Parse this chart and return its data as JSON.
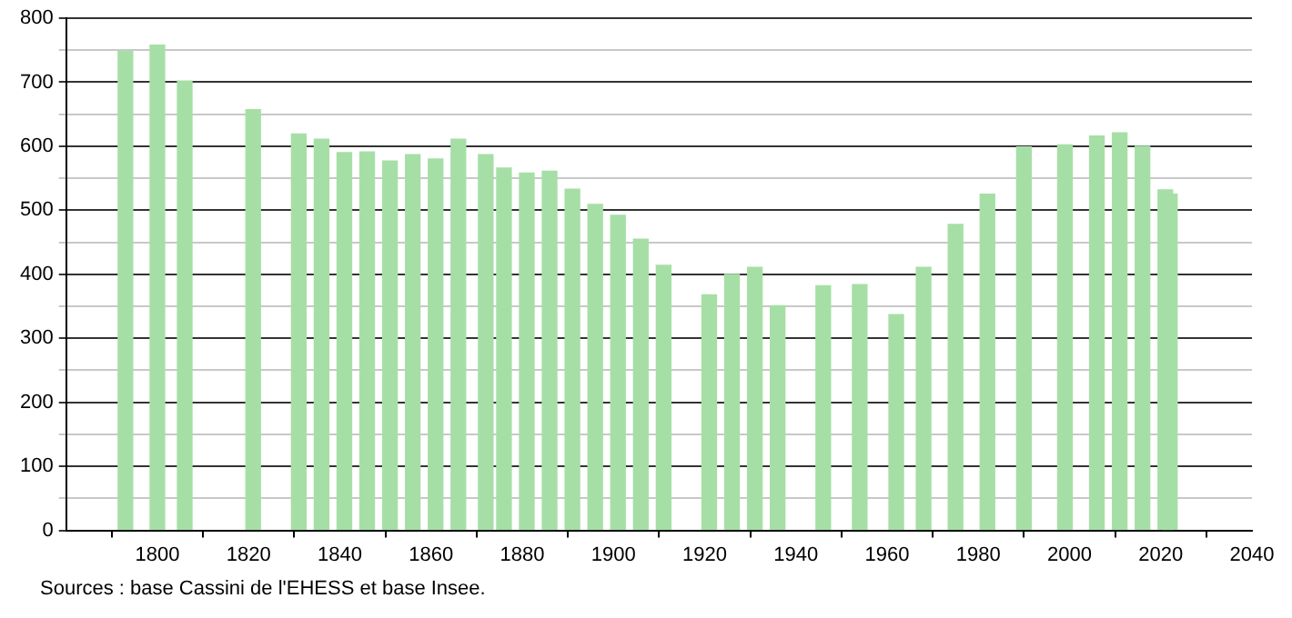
{
  "chart_data": {
    "type": "bar",
    "x": [
      1793,
      1800,
      1806,
      1821,
      1831,
      1836,
      1841,
      1846,
      1851,
      1856,
      1861,
      1866,
      1872,
      1876,
      1881,
      1886,
      1891,
      1896,
      1901,
      1906,
      1911,
      1921,
      1926,
      1931,
      1936,
      1946,
      1954,
      1962,
      1968,
      1975,
      1982,
      1990,
      1999,
      2006,
      2011,
      2016,
      2021,
      2022
    ],
    "values": [
      748,
      758,
      702,
      657,
      619,
      611,
      590,
      591,
      577,
      587,
      580,
      611,
      587,
      566,
      558,
      561,
      533,
      509,
      492,
      455,
      414,
      368,
      400,
      411,
      351,
      382,
      384,
      337,
      411,
      478,
      525,
      599,
      602,
      616,
      621,
      600,
      532,
      525
    ],
    "color": "#a6dfa6",
    "xlim": [
      1780,
      2040
    ],
    "xticks": [
      1800,
      1820,
      1840,
      1860,
      1880,
      1900,
      1920,
      1940,
      1960,
      1980,
      2000,
      2020,
      2040
    ],
    "ylim": [
      0,
      800
    ],
    "yticks": [
      0,
      {
        "value": 50,
        "label": null
      },
      100,
      {
        "value": 150,
        "label": null
      },
      200,
      {
        "value": 250,
        "label": null
      },
      300,
      {
        "value": 350,
        "label": null
      },
      400,
      {
        "value": 450,
        "label": null
      },
      500,
      {
        "value": 550,
        "label": null
      },
      600,
      {
        "value": 650,
        "label": null
      },
      700,
      {
        "value": 750,
        "label": null
      },
      800
    ],
    "grid": "y",
    "legend": false,
    "annotations": [
      "Sources : base Cassini de l'EHESS et base Insee."
    ]
  }
}
